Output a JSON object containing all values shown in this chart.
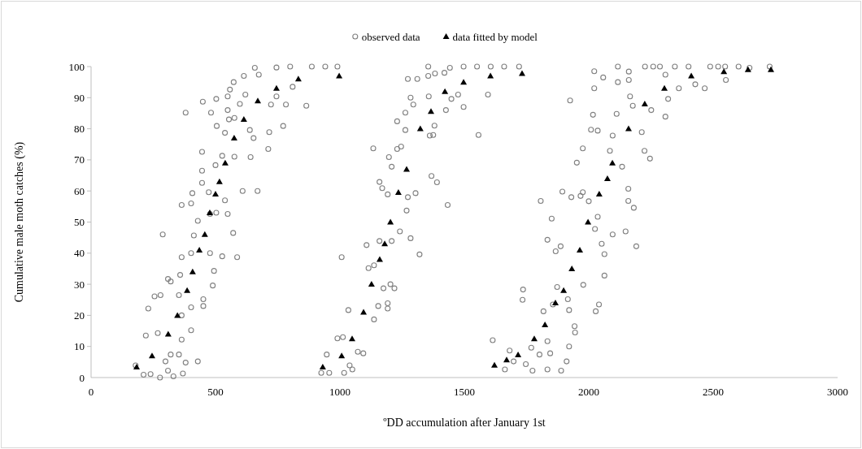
{
  "chart_data": {
    "type": "scatter",
    "xlabel": "ºDD accumulation after January 1st",
    "ylabel": "Cumulative  male moth catches (%)",
    "legend": "top",
    "xlim": [
      0,
      3000
    ],
    "xticks": [
      0,
      500,
      1000,
      1500,
      2000,
      2500,
      3000
    ],
    "ylim": [
      0,
      100
    ],
    "yticks": [
      0,
      10,
      20,
      30,
      40,
      50,
      60,
      70,
      80,
      90,
      100
    ],
    "grid": false,
    "series": [
      {
        "name": "observed data",
        "color": "#808080",
        "marker": "circle",
        "x": [
          179,
          211,
          239,
          277,
          309,
          331,
          369,
          299,
          320,
          353,
          364,
          402,
          429,
          380,
          220,
          268,
          230,
          255,
          279,
          288,
          309,
          320,
          358,
          353,
          364,
          402,
          451,
          451,
          489,
          494,
          364,
          402,
          413,
          429,
          402,
          364,
          407,
          446,
          446,
          473,
          478,
          503,
          538,
          549,
          571,
          527,
          478,
          587,
          500,
          527,
          576,
          609,
          669,
          446,
          380,
          449,
          482,
          503,
          505,
          538,
          549,
          554,
          576,
          549,
          558,
          573,
          598,
          620,
          614,
          638,
          641,
          653,
          658,
          674,
          712,
          716,
          723,
          745,
          772,
          783,
          800,
          865,
          887,
          941,
          990,
          745,
          810,
          1007,
          925,
          947,
          957,
          1017,
          1034,
          990,
          1012,
          1039,
          1050,
          1072,
          1094,
          1137,
          1154,
          1192,
          1192,
          1175,
          1203,
          1219,
          1115,
          1137,
          1107,
          1159,
          1208,
          1241,
          1284,
          1320,
          1268,
          1273,
          1304,
          1159,
          1170,
          1192,
          1208,
          1197,
          1134,
          1230,
          1246,
          1263,
          1230,
          1263,
          1284,
          1295,
          1273,
          1311,
          1355,
          1355,
          1382,
          1357,
          1380,
          1361,
          1375,
          1368,
          1390,
          1433,
          1426,
          1448,
          1475,
          1497,
          1557,
          1595,
          1442,
          1497,
          1551,
          1606,
          1660,
          1720,
          1420,
          1614,
          1663,
          1682,
          1698,
          1747,
          1774,
          1769,
          1802,
          1834,
          1845,
          1834,
          1889,
          1911,
          1921,
          1943,
          1945,
          1736,
          1734,
          1818,
          1856,
          1873,
          1916,
          1921,
          1807,
          1851,
          1834,
          1867,
          1887,
          1894,
          1930,
          1967,
          1976,
          1952,
          1976,
          2000,
          2036,
          2025,
          2052,
          2063,
          1978,
          2063,
          2041,
          2028,
          2096,
          2009,
          2036,
          2017,
          2022,
          2022,
          2058,
          1925,
          2085,
          2096,
          2117,
          2117,
          2161,
          2161,
          2166,
          2177,
          2112,
          2213,
          2224,
          2246,
          2134,
          2159,
          2159,
          2181,
          2148,
          2191,
          2226,
          2259,
          2286,
          2308,
          2346,
          2362,
          2401,
          2428,
          2466,
          2488,
          2520,
          2548,
          2551,
          2602,
          2646,
          2727,
          2308,
          2319,
          2251
        ],
        "values": [
          3.9,
          0.9,
          1.1,
          0,
          2.2,
          0.4,
          1.3,
          5.2,
          7.4,
          7.4,
          12.2,
          15.2,
          5.2,
          4.8,
          13.5,
          14.3,
          22.2,
          26.1,
          26.5,
          46,
          31.7,
          30.9,
          33,
          26.5,
          20,
          22.6,
          23,
          25.2,
          29.6,
          34.3,
          38.7,
          40,
          45.7,
          50.4,
          56,
          55.5,
          59.3,
          62.6,
          66.5,
          59.6,
          52.6,
          53,
          57,
          52.6,
          46.5,
          39,
          40,
          38.7,
          68.3,
          71.3,
          71,
          60,
          60,
          72.6,
          85.2,
          88.7,
          85.2,
          89.6,
          80.9,
          78.7,
          86,
          83,
          83.5,
          90.4,
          92.6,
          95,
          88,
          91,
          97,
          79.6,
          70.9,
          77,
          99.6,
          97.4,
          73.5,
          78.9,
          87.8,
          99.7,
          80.9,
          87.8,
          100,
          87.4,
          100,
          100,
          100,
          90.4,
          93.5,
          38.7,
          1.5,
          7.4,
          1.5,
          1.5,
          21.7,
          12.6,
          13,
          3.9,
          2.6,
          8.3,
          7.8,
          18.7,
          23,
          23.9,
          22.2,
          28.7,
          30,
          28.7,
          35.2,
          36.1,
          42.6,
          43.9,
          43.9,
          47,
          44.8,
          39.6,
          53.7,
          58,
          59.3,
          62.9,
          60.9,
          58.9,
          67.8,
          70.9,
          73.7,
          73.5,
          74.3,
          79.6,
          82.4,
          85.2,
          90,
          87.8,
          96,
          96,
          97,
          100,
          97.8,
          90.4,
          81,
          77.8,
          78,
          64.8,
          62.8,
          55.5,
          86,
          89.6,
          91,
          87,
          78,
          91,
          99.6,
          100,
          100,
          100,
          100,
          100,
          98,
          12,
          2.6,
          8.7,
          5.2,
          4.3,
          2.2,
          9.6,
          7.4,
          2.6,
          7.8,
          11.7,
          2.2,
          5.2,
          10,
          16.5,
          14.5,
          28.3,
          25,
          21.3,
          23.5,
          29.1,
          25.2,
          21.7,
          56.8,
          51.1,
          44.3,
          40.6,
          42.2,
          59.8,
          58,
          58.4,
          59.6,
          69.1,
          73.7,
          56.7,
          51.7,
          47.8,
          43,
          39.7,
          29.8,
          32.8,
          23.5,
          21.3,
          46,
          79.7,
          79.4,
          84.5,
          93,
          98.5,
          96.5,
          89.1,
          72.9,
          77.8,
          100,
          95,
          95.7,
          98.4,
          90.4,
          87.4,
          84.8,
          78.9,
          72.9,
          70.4,
          67.8,
          60.7,
          56.8,
          54.6,
          47,
          42.2,
          100,
          100,
          100,
          97.4,
          100,
          93,
          100,
          94.3,
          93,
          100,
          100,
          100,
          95.7,
          100,
          99.6,
          100,
          83.9,
          89.6,
          86
        ]
      },
      {
        "name": "data fitted  by model",
        "color": "#000000",
        "marker": "triangle",
        "x": [
          183,
          245,
          310,
          347,
          386,
          408,
          435,
          457,
          477,
          500,
          516,
          539,
          575,
          614,
          670,
          745,
          833,
          997,
          931,
          1007,
          1049,
          1095,
          1127,
          1160,
          1180,
          1203,
          1235,
          1268,
          1323,
          1366,
          1422,
          1497,
          1605,
          1732,
          1621,
          1670,
          1716,
          1781,
          1824,
          1866,
          1899,
          1932,
          1964,
          1997,
          2042,
          2075,
          2095,
          2160,
          2225,
          2304,
          2412,
          2543,
          2640,
          2732
        ],
        "values": [
          3.4,
          7,
          14,
          20,
          28,
          34,
          41,
          46,
          53,
          59,
          63,
          69,
          77,
          83,
          89,
          93,
          96,
          97,
          3.4,
          7,
          12.5,
          21,
          30,
          38,
          43,
          50,
          59.5,
          67,
          80,
          85.6,
          92,
          95,
          97,
          97.8,
          4,
          5.7,
          7.3,
          12.5,
          17,
          24,
          28,
          35,
          41,
          50,
          59,
          64,
          69,
          80,
          88,
          93,
          97,
          98.4,
          99,
          99
        ]
      }
    ]
  }
}
